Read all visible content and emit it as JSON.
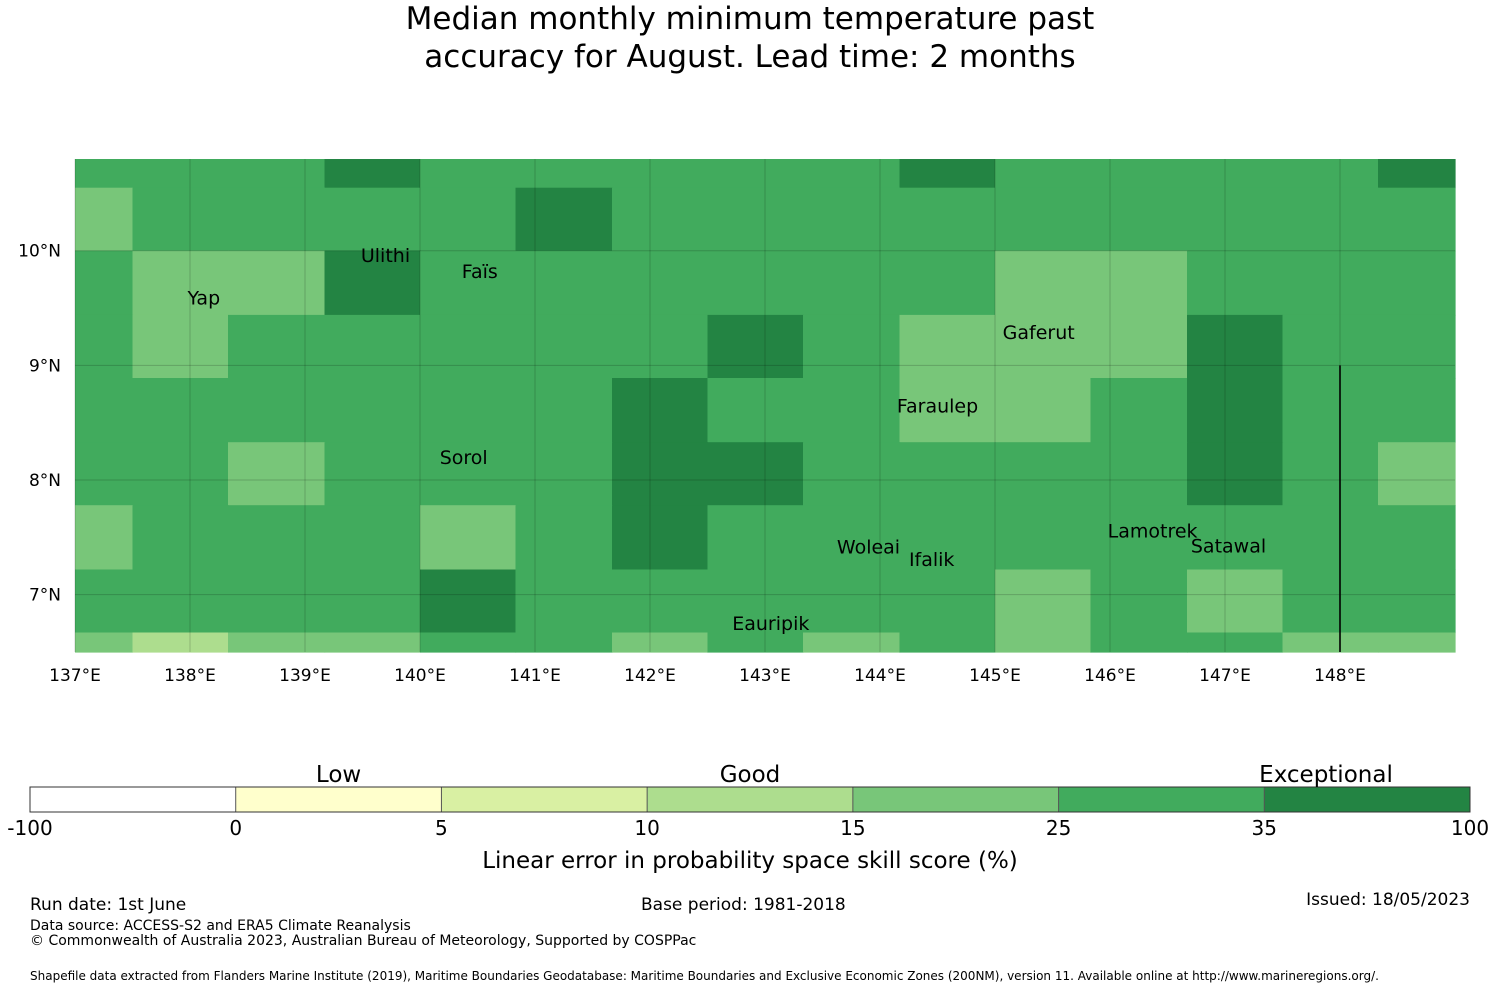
{
  "title": {
    "line1": "Median monthly minimum temperature past",
    "line2": "accuracy for August. Lead time: 2 months"
  },
  "map": {
    "lon_range": [
      137.0,
      149.0
    ],
    "lat_range": [
      6.5,
      10.8
    ],
    "lon_ticks": [
      {
        "value": 137,
        "label": "137°E"
      },
      {
        "value": 138,
        "label": "138°E"
      },
      {
        "value": 139,
        "label": "139°E"
      },
      {
        "value": 140,
        "label": "140°E"
      },
      {
        "value": 141,
        "label": "141°E"
      },
      {
        "value": 142,
        "label": "142°E"
      },
      {
        "value": 143,
        "label": "143°E"
      },
      {
        "value": 144,
        "label": "144°E"
      },
      {
        "value": 145,
        "label": "145°E"
      },
      {
        "value": 146,
        "label": "146°E"
      },
      {
        "value": 147,
        "label": "147°E"
      },
      {
        "value": 148,
        "label": "148°E"
      }
    ],
    "lat_ticks": [
      {
        "value": 10,
        "label": "10°N"
      },
      {
        "value": 9,
        "label": "9°N"
      },
      {
        "value": 8,
        "label": "8°N"
      },
      {
        "value": 7,
        "label": "7°N"
      }
    ],
    "grid": true,
    "cell_columns": [
      137.0,
      137.5,
      138.33,
      139.17,
      140.0,
      140.83,
      141.67,
      142.5,
      143.33,
      144.17,
      145.0,
      145.83,
      146.67,
      147.5,
      148.33,
      149.0
    ],
    "cell_rows": [
      10.8,
      10.55,
      10.0,
      9.44,
      8.89,
      8.33,
      7.78,
      7.22,
      6.67,
      6.5
    ],
    "cell_classes": [
      [
        5,
        5,
        5,
        6,
        5,
        5,
        5,
        5,
        5,
        6,
        5,
        5,
        5,
        5,
        6
      ],
      [
        4,
        5,
        5,
        5,
        5,
        6,
        5,
        5,
        5,
        5,
        5,
        5,
        5,
        5,
        5
      ],
      [
        5,
        4,
        4,
        6,
        5,
        5,
        5,
        5,
        5,
        5,
        4,
        4,
        5,
        5,
        5
      ],
      [
        5,
        4,
        5,
        5,
        5,
        5,
        5,
        6,
        5,
        4,
        4,
        4,
        6,
        5,
        5
      ],
      [
        5,
        5,
        5,
        5,
        5,
        5,
        6,
        5,
        5,
        4,
        4,
        5,
        6,
        5,
        5
      ],
      [
        5,
        5,
        4,
        5,
        5,
        5,
        6,
        6,
        5,
        5,
        5,
        5,
        6,
        5,
        4
      ],
      [
        4,
        5,
        5,
        5,
        4,
        5,
        6,
        5,
        5,
        5,
        5,
        5,
        5,
        5,
        5
      ],
      [
        5,
        5,
        5,
        5,
        6,
        5,
        5,
        5,
        5,
        5,
        4,
        5,
        4,
        5,
        5
      ],
      [
        4,
        3,
        4,
        4,
        5,
        5,
        4,
        5,
        4,
        5,
        4,
        5,
        5,
        4,
        4
      ]
    ],
    "eez_boundary_segment": {
      "lon": 148.0,
      "lat_from": 9.0,
      "lat_to": 6.5
    },
    "places": [
      {
        "name": "Ulithi",
        "lon": 139.7,
        "lat": 9.9
      },
      {
        "name": "Faïs",
        "lon": 140.52,
        "lat": 9.76
      },
      {
        "name": "Yap",
        "lon": 138.12,
        "lat": 9.53
      },
      {
        "name": "Gaferut",
        "lon": 145.38,
        "lat": 9.23
      },
      {
        "name": "Faraulep",
        "lon": 144.5,
        "lat": 8.59
      },
      {
        "name": "Sorol",
        "lon": 140.38,
        "lat": 8.14
      },
      {
        "name": "Woleai",
        "lon": 143.9,
        "lat": 7.36
      },
      {
        "name": "Ifalik",
        "lon": 144.45,
        "lat": 7.25
      },
      {
        "name": "Lamotrek",
        "lon": 146.37,
        "lat": 7.5
      },
      {
        "name": "Satawal",
        "lon": 147.03,
        "lat": 7.37
      },
      {
        "name": "Eauripik",
        "lon": 143.05,
        "lat": 6.69
      }
    ]
  },
  "legend": {
    "category_labels": [
      "Low",
      "Good",
      "Exceptional"
    ],
    "boundaries": [
      "-100",
      "0",
      "5",
      "10",
      "15",
      "25",
      "35",
      "100"
    ],
    "colors": [
      "#ffffff",
      "#ffffcc",
      "#d9f0a3",
      "#addd8e",
      "#78c679",
      "#41ab5d",
      "#238443"
    ],
    "label": "Linear error in probability space skill score (%)"
  },
  "footer": {
    "run_date": "Run date: 1st June",
    "base_period": "Base period: 1981-2018",
    "issued": "Issued: 18/05/2023",
    "data_source": "Data source: ACCESS-S2 and ERA5 Climate Reanalysis",
    "copyright": "© Commonwealth of Australia 2023, Australian Bureau of Meteorology, Supported by COSPPac",
    "shapefile": "Shapefile data extracted from Flanders Marine Institute (2019), Maritime Boundaries Geodatabase: Maritime Boundaries and Exclusive Economic Zones (200NM), version 11. Available online at http://www.marineregions.org/."
  }
}
